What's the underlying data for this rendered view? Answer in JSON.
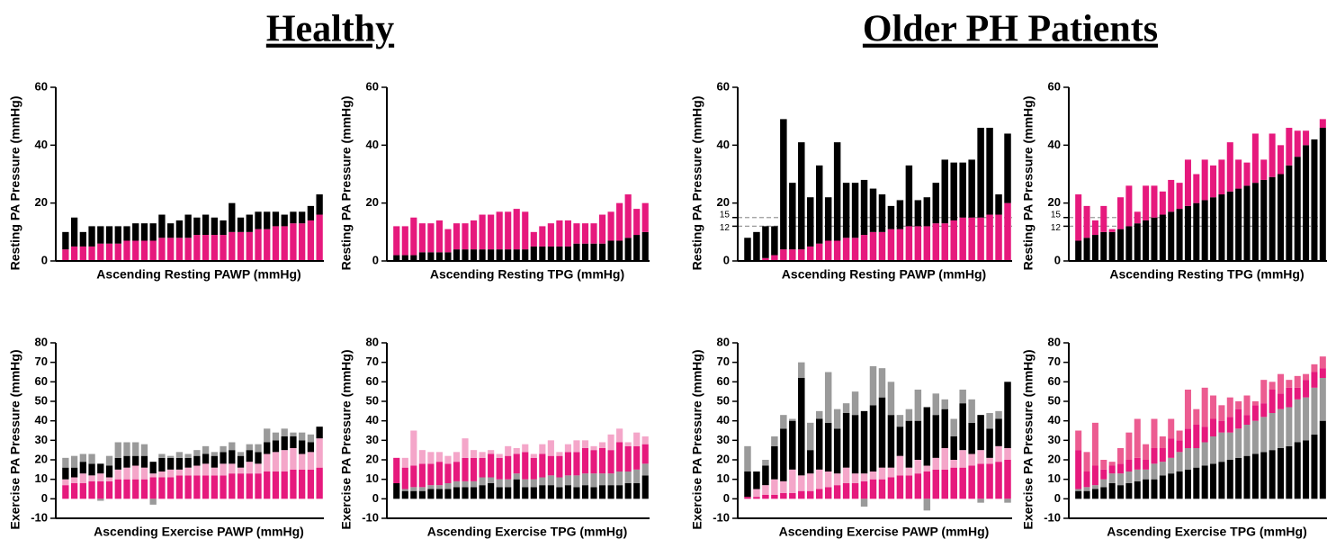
{
  "groups": [
    "Healthy",
    "Older PH Patients"
  ],
  "chart_data": [
    {
      "type": "bar",
      "stacked": true,
      "ylabel": "Resting PA Pressure (mmHg)",
      "xlabel": "Ascending Resting PAWP (mmHg)",
      "ylim": [
        0,
        60
      ],
      "yticks": [
        0,
        20,
        40,
        60
      ],
      "series": [
        {
          "color": "#e6197d",
          "values": [
            4,
            5,
            5,
            5,
            6,
            6,
            6,
            7,
            7,
            7,
            7,
            8,
            8,
            8,
            8,
            9,
            9,
            9,
            9,
            10,
            10,
            10,
            11,
            11,
            12,
            12,
            13,
            13,
            14,
            16
          ]
        },
        {
          "color": "#000000",
          "values": [
            6,
            10,
            5,
            7,
            6,
            6,
            6,
            5,
            6,
            6,
            6,
            8,
            5,
            6,
            8,
            6,
            7,
            6,
            5,
            10,
            5,
            6,
            6,
            6,
            5,
            4,
            4,
            4,
            5,
            7
          ]
        }
      ]
    },
    {
      "type": "bar",
      "stacked": true,
      "ylabel": "Resting PA Pressure (mmHg)",
      "xlabel": "Ascending Resting TPG (mmHg)",
      "ylim": [
        0,
        60
      ],
      "yticks": [
        0,
        20,
        40,
        60
      ],
      "series": [
        {
          "color": "#000000",
          "values": [
            2,
            2,
            2,
            3,
            3,
            3,
            3,
            4,
            4,
            4,
            4,
            4,
            4,
            4,
            4,
            4,
            5,
            5,
            5,
            5,
            5,
            6,
            6,
            6,
            6,
            7,
            7,
            8,
            9,
            10
          ]
        },
        {
          "color": "#e6197d",
          "values": [
            10,
            10,
            13,
            10,
            10,
            11,
            8,
            9,
            9,
            10,
            12,
            12,
            13,
            13,
            14,
            13,
            5,
            7,
            8,
            9,
            9,
            7,
            7,
            7,
            10,
            10,
            13,
            15,
            9,
            10
          ]
        }
      ]
    },
    {
      "type": "bar",
      "stacked": true,
      "ylabel": "Resting PA Pressure (mmHg)",
      "xlabel": "Ascending Resting PAWP (mmHg)",
      "ylim": [
        0,
        60
      ],
      "yticks": [
        0,
        12,
        15,
        20,
        40,
        60
      ],
      "reference_lines": [
        12,
        15
      ],
      "series": [
        {
          "color": "#e6197d",
          "values": [
            0,
            0,
            1,
            2,
            4,
            4,
            4,
            5,
            6,
            7,
            7,
            8,
            8,
            9,
            10,
            10,
            11,
            11,
            12,
            12,
            12,
            13,
            13,
            14,
            15,
            15,
            15,
            16,
            16,
            20
          ]
        },
        {
          "color": "#000000",
          "values": [
            8,
            10,
            11,
            10,
            45,
            23,
            37,
            17,
            27,
            15,
            34,
            19,
            19,
            19,
            15,
            13,
            8,
            10,
            21,
            9,
            10,
            14,
            22,
            20,
            19,
            20,
            31,
            30,
            7,
            24
          ]
        }
      ]
    },
    {
      "type": "bar",
      "stacked": true,
      "ylabel": "Resting PA Pressure (mmHg)",
      "xlabel": "Ascending Resting TPG (mmHg)",
      "ylim": [
        0,
        60
      ],
      "yticks": [
        0,
        12,
        15,
        20,
        40,
        60
      ],
      "reference_lines": [
        12,
        15
      ],
      "series": [
        {
          "color": "#000000",
          "values": [
            7,
            8,
            9,
            10,
            10,
            11,
            12,
            13,
            14,
            15,
            16,
            17,
            18,
            19,
            20,
            21,
            22,
            23,
            24,
            25,
            26,
            27,
            28,
            29,
            30,
            33,
            36,
            40,
            42,
            46
          ]
        },
        {
          "color": "#e6197d",
          "values": [
            16,
            11,
            5,
            9,
            1,
            11,
            14,
            4,
            12,
            11,
            8,
            11,
            9,
            16,
            10,
            14,
            11,
            12,
            17,
            10,
            8,
            17,
            7,
            15,
            10,
            13,
            9,
            5,
            0,
            3
          ]
        }
      ]
    },
    {
      "type": "bar",
      "stacked": true,
      "ylabel": "Exercise PA Pressure (mmHg)",
      "xlabel": "Ascending Exercise PAWP (mmHg)",
      "ylim": [
        -10,
        80
      ],
      "yticks": [
        -10,
        0,
        10,
        20,
        30,
        40,
        50,
        60,
        70,
        80
      ],
      "series": [
        {
          "color": "#e6197d",
          "values": [
            7,
            8,
            8,
            9,
            9,
            9,
            10,
            10,
            10,
            10,
            11,
            11,
            11,
            12,
            12,
            12,
            12,
            12,
            12,
            13,
            13,
            13,
            13,
            14,
            14,
            14,
            15,
            15,
            15,
            16
          ]
        },
        {
          "color": "#f4a6c9",
          "values": [
            3,
            3,
            5,
            3,
            4,
            2,
            5,
            6,
            7,
            6,
            2,
            3,
            4,
            3,
            4,
            5,
            6,
            4,
            6,
            5,
            3,
            6,
            5,
            9,
            10,
            11,
            11,
            8,
            9,
            15
          ]
        },
        {
          "color": "#000000",
          "values": [
            6,
            5,
            6,
            6,
            5,
            6,
            6,
            6,
            5,
            6,
            6,
            7,
            6,
            6,
            5,
            5,
            5,
            6,
            6,
            7,
            6,
            6,
            6,
            6,
            6,
            7,
            6,
            7,
            5,
            6
          ]
        },
        {
          "color": "#9a9a9a",
          "values": [
            5,
            6,
            4,
            5,
            -1,
            5,
            8,
            7,
            7,
            6,
            -3,
            2,
            1,
            3,
            2,
            3,
            4,
            2,
            3,
            4,
            2,
            3,
            4,
            7,
            4,
            4,
            2,
            4,
            4,
            0
          ]
        }
      ]
    },
    {
      "type": "bar",
      "stacked": true,
      "ylabel": "Exercise PA Pressure (mmHg)",
      "xlabel": "Ascending Exercise TPG (mmHg)",
      "ylim": [
        -10,
        80
      ],
      "yticks": [
        -10,
        0,
        10,
        20,
        30,
        40,
        50,
        60,
        70,
        80
      ],
      "series": [
        {
          "color": "#000000",
          "values": [
            8,
            4,
            4,
            4,
            5,
            5,
            5,
            6,
            6,
            6,
            7,
            8,
            6,
            6,
            10,
            6,
            6,
            7,
            7,
            6,
            7,
            6,
            7,
            6,
            7,
            7,
            7,
            8,
            8,
            12
          ]
        },
        {
          "color": "#9a9a9a",
          "values": [
            0,
            1,
            2,
            2,
            2,
            2,
            3,
            3,
            3,
            3,
            4,
            3,
            4,
            4,
            3,
            4,
            4,
            4,
            5,
            5,
            5,
            6,
            6,
            7,
            6,
            6,
            7,
            6,
            7,
            6
          ]
        },
        {
          "color": "#e6197d",
          "values": [
            13,
            11,
            11,
            12,
            11,
            12,
            10,
            10,
            12,
            12,
            10,
            12,
            11,
            12,
            10,
            14,
            11,
            12,
            10,
            11,
            12,
            12,
            13,
            12,
            13,
            12,
            15,
            13,
            12,
            10
          ]
        },
        {
          "color": "#f4a6c9",
          "values": [
            0,
            5,
            18,
            7,
            6,
            5,
            4,
            5,
            10,
            4,
            3,
            2,
            2,
            5,
            3,
            4,
            2,
            5,
            8,
            2,
            4,
            6,
            4,
            2,
            3,
            8,
            7,
            2,
            7,
            4
          ]
        }
      ]
    },
    {
      "type": "bar",
      "stacked": true,
      "ylabel": "Exercise PA Pressure (mmHg)",
      "xlabel": "Ascending Exercise PAWP (mmHg)",
      "ylim": [
        -10,
        80
      ],
      "yticks": [
        -10,
        0,
        10,
        20,
        30,
        40,
        50,
        60,
        70,
        80
      ],
      "series": [
        {
          "color": "#e6197d",
          "values": [
            1,
            1,
            2,
            2,
            3,
            3,
            4,
            4,
            5,
            6,
            7,
            8,
            8,
            9,
            10,
            10,
            11,
            12,
            12,
            13,
            14,
            15,
            15,
            16,
            16,
            17,
            18,
            18,
            19,
            20
          ]
        },
        {
          "color": "#f4a6c9",
          "values": [
            0,
            4,
            5,
            8,
            6,
            12,
            8,
            9,
            10,
            8,
            6,
            8,
            5,
            4,
            4,
            6,
            5,
            10,
            4,
            7,
            3,
            6,
            11,
            4,
            9,
            6,
            7,
            3,
            8,
            6
          ]
        },
        {
          "color": "#000000",
          "values": [
            13,
            9,
            10,
            17,
            27,
            25,
            50,
            12,
            26,
            25,
            23,
            28,
            30,
            32,
            34,
            36,
            27,
            15,
            24,
            20,
            30,
            22,
            20,
            12,
            24,
            16,
            18,
            15,
            14,
            34
          ]
        },
        {
          "color": "#9a9a9a",
          "values": [
            13,
            0,
            3,
            5,
            7,
            1,
            8,
            14,
            4,
            26,
            10,
            5,
            12,
            -4,
            20,
            15,
            17,
            6,
            6,
            16,
            -6,
            11,
            5,
            9,
            7,
            12,
            -2,
            8,
            4,
            -2
          ]
        }
      ]
    },
    {
      "type": "bar",
      "stacked": true,
      "ylabel": "Exercise PA Pressure (mmHg)",
      "xlabel": "Ascending Exercise TPG (mmHg)",
      "ylim": [
        -10,
        80
      ],
      "yticks": [
        -10,
        0,
        10,
        20,
        30,
        40,
        50,
        60,
        70,
        80
      ],
      "series": [
        {
          "color": "#000000",
          "values": [
            4,
            4,
            5,
            6,
            8,
            7,
            8,
            9,
            10,
            10,
            12,
            13,
            14,
            15,
            16,
            17,
            18,
            19,
            20,
            21,
            22,
            23,
            24,
            25,
            26,
            27,
            29,
            30,
            33,
            40
          ]
        },
        {
          "color": "#9a9a9a",
          "values": [
            1,
            2,
            2,
            4,
            5,
            6,
            6,
            6,
            5,
            8,
            7,
            8,
            10,
            11,
            10,
            12,
            14,
            15,
            14,
            15,
            16,
            17,
            18,
            19,
            20,
            20,
            22,
            22,
            24,
            22
          ]
        },
        {
          "color": "#e6197d",
          "values": [
            20,
            8,
            10,
            5,
            4,
            5,
            6,
            6,
            5,
            8,
            7,
            10,
            6,
            10,
            12,
            8,
            9,
            6,
            8,
            10,
            5,
            8,
            7,
            12,
            8,
            10,
            6,
            9,
            8,
            5
          ]
        },
        {
          "color": "#ec5c91",
          "values": [
            10,
            10,
            22,
            5,
            2,
            8,
            14,
            20,
            8,
            15,
            6,
            10,
            5,
            20,
            8,
            20,
            12,
            8,
            10,
            4,
            10,
            2,
            12,
            4,
            10,
            4,
            6,
            3,
            4,
            6
          ]
        }
      ]
    }
  ]
}
